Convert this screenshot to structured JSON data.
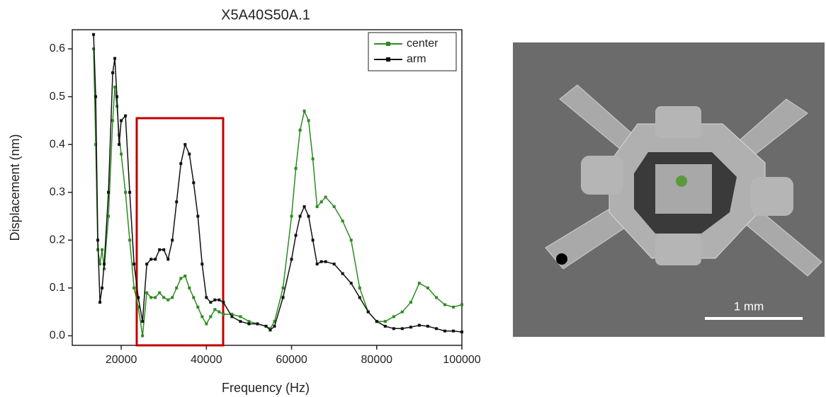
{
  "chart_data": {
    "type": "line",
    "title": "X5A40S50A.1",
    "x_label": "Frequency (Hz)",
    "y_label": "Displacement (nm)",
    "x": [
      13500,
      14000,
      14500,
      15000,
      15500,
      16000,
      17000,
      18000,
      18500,
      19000,
      19500,
      20000,
      21000,
      22000,
      23000,
      24000,
      25000,
      26000,
      27000,
      28000,
      29000,
      30000,
      31000,
      32000,
      33000,
      34000,
      35000,
      36000,
      37000,
      38000,
      39000,
      40000,
      41000,
      42000,
      43000,
      44000,
      46000,
      48000,
      50000,
      52000,
      54000,
      55000,
      56000,
      58000,
      60000,
      61000,
      62000,
      63000,
      64000,
      65000,
      66000,
      67000,
      68000,
      70000,
      72000,
      74000,
      76000,
      78000,
      80000,
      82000,
      84000,
      86000,
      88000,
      90000,
      92000,
      94000,
      96000,
      98000,
      100000
    ],
    "series": [
      {
        "name": "center",
        "color": "#2e8b22",
        "values": [
          0.6,
          0.4,
          0.18,
          0.15,
          0.18,
          0.14,
          0.25,
          0.45,
          0.52,
          0.48,
          0.42,
          0.38,
          0.3,
          0.2,
          0.1,
          0.06,
          0.0,
          0.09,
          0.08,
          0.08,
          0.09,
          0.08,
          0.075,
          0.08,
          0.1,
          0.12,
          0.125,
          0.1,
          0.08,
          0.06,
          0.04,
          0.025,
          0.04,
          0.055,
          0.05,
          0.045,
          0.045,
          0.04,
          0.03,
          0.025,
          0.02,
          0.015,
          0.03,
          0.1,
          0.25,
          0.35,
          0.43,
          0.47,
          0.45,
          0.37,
          0.27,
          0.28,
          0.29,
          0.27,
          0.24,
          0.2,
          0.1,
          0.05,
          0.03,
          0.03,
          0.04,
          0.05,
          0.07,
          0.11,
          0.1,
          0.08,
          0.065,
          0.06,
          0.065
        ]
      },
      {
        "name": "arm",
        "color": "#111111",
        "values": [
          0.63,
          0.5,
          0.2,
          0.07,
          0.1,
          0.15,
          0.3,
          0.55,
          0.58,
          0.5,
          0.4,
          0.45,
          0.46,
          0.3,
          0.15,
          0.08,
          0.03,
          0.15,
          0.16,
          0.16,
          0.18,
          0.18,
          0.16,
          0.2,
          0.28,
          0.36,
          0.4,
          0.38,
          0.32,
          0.25,
          0.15,
          0.08,
          0.07,
          0.075,
          0.075,
          0.07,
          0.04,
          0.03,
          0.025,
          0.025,
          0.02,
          0.012,
          0.02,
          0.08,
          0.16,
          0.21,
          0.25,
          0.27,
          0.25,
          0.2,
          0.15,
          0.155,
          0.155,
          0.15,
          0.13,
          0.11,
          0.08,
          0.05,
          0.03,
          0.02,
          0.015,
          0.015,
          0.018,
          0.022,
          0.02,
          0.015,
          0.01,
          0.01,
          0.008
        ]
      }
    ],
    "xlim": [
      8500,
      100000
    ],
    "ylim": [
      -0.02,
      0.64
    ],
    "xticks": [
      20000,
      40000,
      60000,
      80000,
      100000
    ],
    "yticks": [
      {
        "value": 0,
        "label": "0.0"
      },
      0.1,
      0.2,
      0.3,
      0.4,
      0.5,
      0.6
    ],
    "legend": "upper right"
  },
  "image": {
    "scale_label": "1 mm"
  }
}
